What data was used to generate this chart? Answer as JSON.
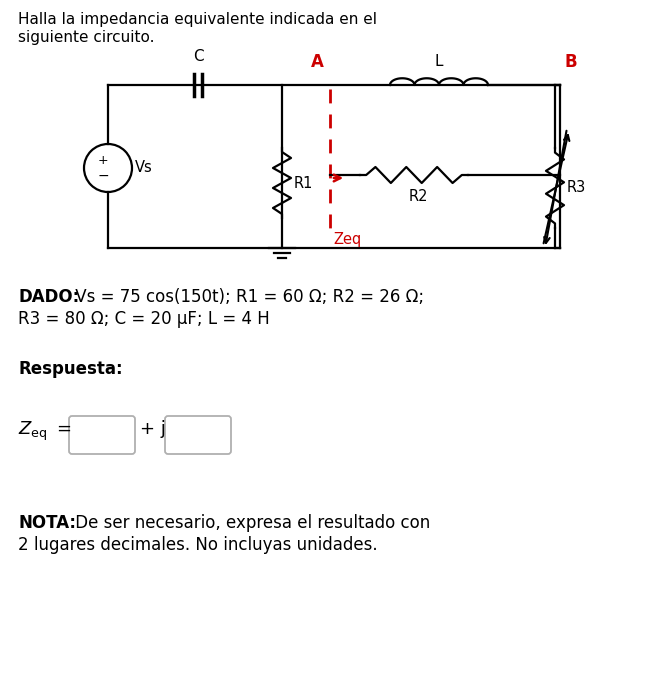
{
  "title_line1": "Halla la impedancia equivalente indicada en el",
  "title_line2": "siguiente circuito.",
  "dado_bold": "DADO:",
  "dado_text": " Vs = 75 cos(150t); R1 = 60 Ω; R2 = 26 Ω;",
  "dado_line2": "R3 = 80 Ω; C = 20 μF; L = 4 H",
  "respuesta_bold": "Respuesta:",
  "plus_j": "+ j",
  "nota_bold": "NOTA:",
  "nota_text": " De ser necesario, expresa el resultado con",
  "nota_line2": "2 lugares decimales. No incluyas unidades.",
  "bg_color": "#ffffff",
  "circuit_color": "#000000",
  "red_color": "#cc0000",
  "label_A": "A",
  "label_B": "B",
  "label_C": "C",
  "label_L": "L",
  "label_R1": "R1",
  "label_R2": "R2",
  "label_R3": "R3",
  "label_Vs": "Vs",
  "label_Zeq": "Zeq",
  "fig_width": 6.68,
  "fig_height": 7.0,
  "dpi": 100
}
